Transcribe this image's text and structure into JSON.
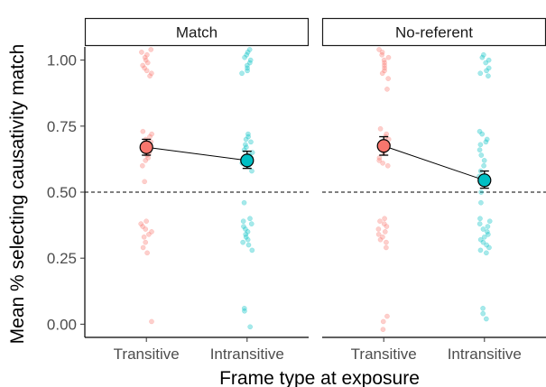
{
  "chart_data": {
    "type": "scatter",
    "xlabel": "Frame type at exposure",
    "ylabel": "Mean % selecting causativity match",
    "categories": [
      "Transitive",
      "Intransitive"
    ],
    "y_ticks": [
      "0.00",
      "0.25",
      "0.50",
      "0.75",
      "1.00"
    ],
    "ylim": [
      -0.05,
      1.05
    ],
    "reference_line": 0.5,
    "grid": false,
    "colors": {
      "Transitive": "#F8766D",
      "Intransitive": "#00BFC4"
    },
    "panels": [
      {
        "label": "Match",
        "summary": [
          {
            "category": "Transitive",
            "mean": 0.67,
            "ci_low": 0.64,
            "ci_high": 0.7
          },
          {
            "category": "Intransitive",
            "mean": 0.62,
            "ci_low": 0.59,
            "ci_high": 0.655
          }
        ],
        "points": {
          "Transitive": [
            1.04,
            1.03,
            1.02,
            1.01,
            1.0,
            0.99,
            0.98,
            0.97,
            0.96,
            0.95,
            0.94,
            0.73,
            0.72,
            0.71,
            0.7,
            0.69,
            0.68,
            0.67,
            0.66,
            0.65,
            0.64,
            0.63,
            0.62,
            0.6,
            0.54,
            0.39,
            0.38,
            0.37,
            0.36,
            0.35,
            0.34,
            0.33,
            0.31,
            0.29,
            0.27,
            0.01
          ],
          "Intransitive": [
            1.04,
            1.03,
            1.02,
            1.01,
            1.0,
            0.99,
            0.98,
            0.97,
            0.96,
            0.95,
            0.72,
            0.71,
            0.7,
            0.69,
            0.68,
            0.67,
            0.66,
            0.65,
            0.64,
            0.63,
            0.62,
            0.61,
            0.6,
            0.58,
            0.46,
            0.4,
            0.39,
            0.38,
            0.37,
            0.36,
            0.35,
            0.34,
            0.33,
            0.32,
            0.31,
            0.3,
            0.28,
            0.06,
            0.05,
            -0.01
          ]
        }
      },
      {
        "label": "No-referent",
        "summary": [
          {
            "category": "Transitive",
            "mean": 0.675,
            "ci_low": 0.64,
            "ci_high": 0.71
          },
          {
            "category": "Intransitive",
            "mean": 0.545,
            "ci_low": 0.515,
            "ci_high": 0.58
          }
        ],
        "points": {
          "Transitive": [
            1.04,
            1.03,
            1.02,
            1.01,
            1.0,
            0.99,
            0.98,
            0.97,
            0.96,
            0.95,
            0.93,
            0.89,
            0.74,
            0.72,
            0.71,
            0.7,
            0.69,
            0.68,
            0.67,
            0.66,
            0.65,
            0.63,
            0.62,
            0.61,
            0.6,
            0.4,
            0.39,
            0.38,
            0.37,
            0.36,
            0.35,
            0.34,
            0.33,
            0.32,
            0.31,
            0.29,
            0.03,
            0.01,
            -0.02
          ],
          "Intransitive": [
            1.02,
            1.01,
            1.0,
            0.99,
            0.97,
            0.96,
            0.95,
            0.94,
            0.73,
            0.72,
            0.7,
            0.69,
            0.68,
            0.66,
            0.64,
            0.62,
            0.6,
            0.58,
            0.56,
            0.55,
            0.54,
            0.53,
            0.5,
            0.46,
            0.4,
            0.39,
            0.38,
            0.37,
            0.36,
            0.35,
            0.34,
            0.33,
            0.32,
            0.31,
            0.3,
            0.29,
            0.28,
            0.27,
            0.06,
            0.04,
            0.02
          ]
        }
      }
    ]
  }
}
